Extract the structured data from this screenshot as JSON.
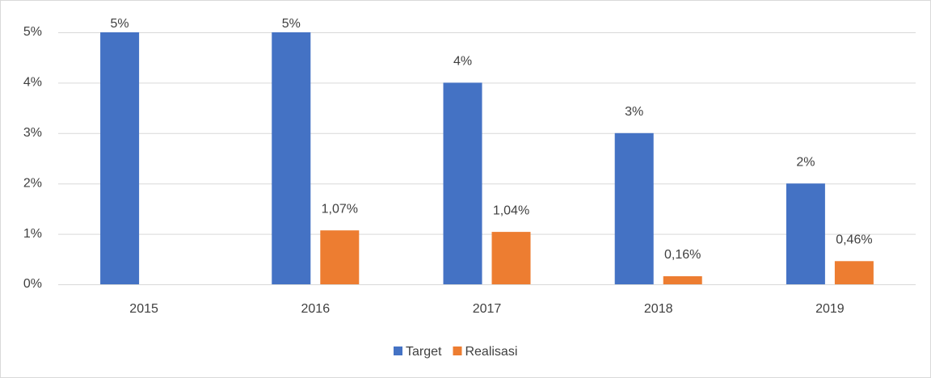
{
  "chart_data": {
    "type": "bar",
    "categories": [
      "2015",
      "2016",
      "2017",
      "2018",
      "2019"
    ],
    "series": [
      {
        "name": "Target",
        "color": "#4472c4",
        "values": [
          5,
          5,
          4,
          3,
          2
        ],
        "value_labels": [
          "5%",
          "5%",
          "4%",
          "3%",
          "2%"
        ]
      },
      {
        "name": "Realisasi",
        "color": "#ed7d31",
        "values": [
          null,
          1.07,
          1.04,
          0.16,
          0.46
        ],
        "value_labels": [
          null,
          "1,07%",
          "1,04%",
          "0,16%",
          "0,46%"
        ]
      }
    ],
    "ylim": [
      0,
      5
    ],
    "yticks": [
      {
        "value": 0,
        "label": "0%"
      },
      {
        "value": 1,
        "label": "1%"
      },
      {
        "value": 2,
        "label": "2%"
      },
      {
        "value": 3,
        "label": "3%"
      },
      {
        "value": 4,
        "label": "4%"
      },
      {
        "value": 5,
        "label": "5%"
      }
    ],
    "grid": true,
    "legend": "bottom"
  }
}
